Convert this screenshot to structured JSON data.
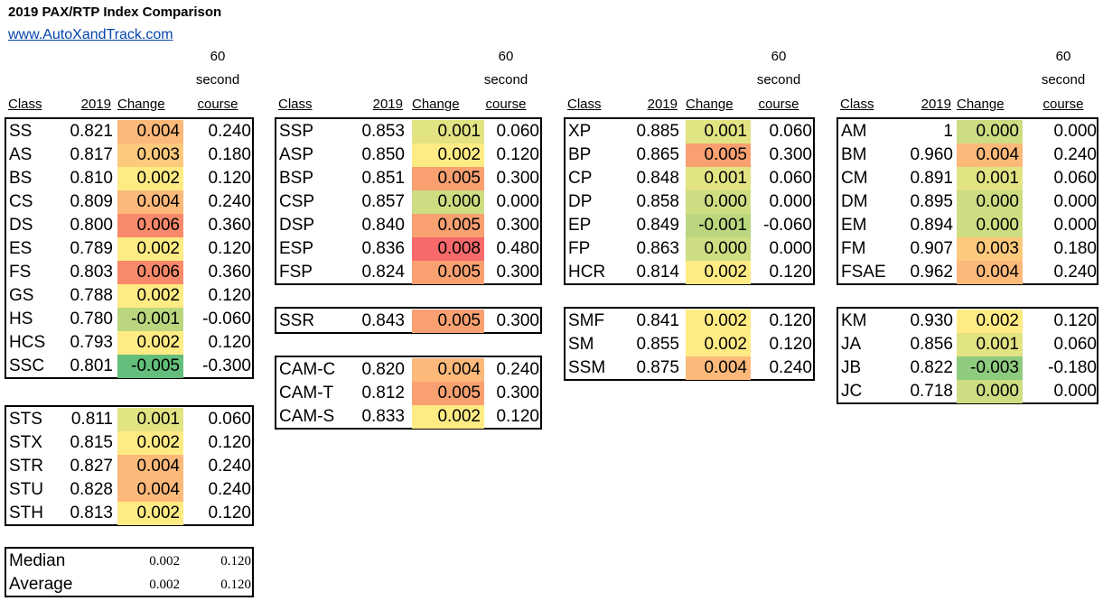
{
  "title": "2019 PAX/RTP Index Comparison",
  "link": "www.AutoXandTrack.com",
  "headers": {
    "class": "Class",
    "year": "2019",
    "change": "Change",
    "course_l1": "60",
    "course_l2": "second",
    "course_l3": "course"
  },
  "heat_colors": {
    "-0.005": "#63be7b",
    "-0.003": "#8ecb7e",
    "-0.001": "#bad77f",
    "0.000": "#cddd82",
    "0.001": "#e2e383",
    "0.002": "#ffeb84",
    "0.003": "#fdc97d",
    "0.004": "#fcb97a",
    "0.005": "#f9a071",
    "0.006": "#f8896b",
    "0.008": "#f8696b"
  },
  "col1": {
    "street": [
      {
        "cls": "SS",
        "val": "0.821",
        "chg": "0.004",
        "crs": "0.240"
      },
      {
        "cls": "AS",
        "val": "0.817",
        "chg": "0.003",
        "crs": "0.180"
      },
      {
        "cls": "BS",
        "val": "0.810",
        "chg": "0.002",
        "crs": "0.120"
      },
      {
        "cls": "CS",
        "val": "0.809",
        "chg": "0.004",
        "crs": "0.240"
      },
      {
        "cls": "DS",
        "val": "0.800",
        "chg": "0.006",
        "crs": "0.360"
      },
      {
        "cls": "ES",
        "val": "0.789",
        "chg": "0.002",
        "crs": "0.120"
      },
      {
        "cls": "FS",
        "val": "0.803",
        "chg": "0.006",
        "crs": "0.360"
      },
      {
        "cls": "GS",
        "val": "0.788",
        "chg": "0.002",
        "crs": "0.120"
      },
      {
        "cls": "HS",
        "val": "0.780",
        "chg": "-0.001",
        "crs": "-0.060"
      },
      {
        "cls": "HCS",
        "val": "0.793",
        "chg": "0.002",
        "crs": "0.120"
      },
      {
        "cls": "SSC",
        "val": "0.801",
        "chg": "-0.005",
        "crs": "-0.300"
      }
    ],
    "touring": [
      {
        "cls": "STS",
        "val": "0.811",
        "chg": "0.001",
        "crs": "0.060"
      },
      {
        "cls": "STX",
        "val": "0.815",
        "chg": "0.002",
        "crs": "0.120"
      },
      {
        "cls": "STR",
        "val": "0.827",
        "chg": "0.004",
        "crs": "0.240"
      },
      {
        "cls": "STU",
        "val": "0.828",
        "chg": "0.004",
        "crs": "0.240"
      },
      {
        "cls": "STH",
        "val": "0.813",
        "chg": "0.002",
        "crs": "0.120"
      }
    ],
    "summary": [
      {
        "label": "Median",
        "chg": "0.002",
        "crs": "0.120"
      },
      {
        "label": "Average",
        "chg": "0.002",
        "crs": "0.120"
      }
    ]
  },
  "col2": {
    "prepared": [
      {
        "cls": "SSP",
        "val": "0.853",
        "chg": "0.001",
        "crs": "0.060"
      },
      {
        "cls": "ASP",
        "val": "0.850",
        "chg": "0.002",
        "crs": "0.120"
      },
      {
        "cls": "BSP",
        "val": "0.851",
        "chg": "0.005",
        "crs": "0.300"
      },
      {
        "cls": "CSP",
        "val": "0.857",
        "chg": "0.000",
        "crs": "0.000"
      },
      {
        "cls": "DSP",
        "val": "0.840",
        "chg": "0.005",
        "crs": "0.300"
      },
      {
        "cls": "ESP",
        "val": "0.836",
        "chg": "0.008",
        "crs": "0.480"
      },
      {
        "cls": "FSP",
        "val": "0.824",
        "chg": "0.005",
        "crs": "0.300"
      }
    ],
    "ssr": [
      {
        "cls": "SSR",
        "val": "0.843",
        "chg": "0.005",
        "crs": "0.300"
      }
    ],
    "cam": [
      {
        "cls": "CAM-C",
        "val": "0.820",
        "chg": "0.004",
        "crs": "0.240"
      },
      {
        "cls": "CAM-T",
        "val": "0.812",
        "chg": "0.005",
        "crs": "0.300"
      },
      {
        "cls": "CAM-S",
        "val": "0.833",
        "chg": "0.002",
        "crs": "0.120"
      }
    ]
  },
  "col3": {
    "prepared": [
      {
        "cls": "XP",
        "val": "0.885",
        "chg": "0.001",
        "crs": "0.060"
      },
      {
        "cls": "BP",
        "val": "0.865",
        "chg": "0.005",
        "crs": "0.300"
      },
      {
        "cls": "CP",
        "val": "0.848",
        "chg": "0.001",
        "crs": "0.060"
      },
      {
        "cls": "DP",
        "val": "0.858",
        "chg": "0.000",
        "crs": "0.000"
      },
      {
        "cls": "EP",
        "val": "0.849",
        "chg": "-0.001",
        "crs": "-0.060"
      },
      {
        "cls": "FP",
        "val": "0.863",
        "chg": "0.000",
        "crs": "0.000"
      },
      {
        "cls": "HCR",
        "val": "0.814",
        "chg": "0.002",
        "crs": "0.120"
      }
    ],
    "smod": [
      {
        "cls": "SMF",
        "val": "0.841",
        "chg": "0.002",
        "crs": "0.120"
      },
      {
        "cls": "SM",
        "val": "0.855",
        "chg": "0.002",
        "crs": "0.120"
      },
      {
        "cls": "SSM",
        "val": "0.875",
        "chg": "0.004",
        "crs": "0.240"
      }
    ]
  },
  "col4": {
    "modified": [
      {
        "cls": "AM",
        "val": "1",
        "chg": "0.000",
        "crs": "0.000"
      },
      {
        "cls": "BM",
        "val": "0.960",
        "chg": "0.004",
        "crs": "0.240"
      },
      {
        "cls": "CM",
        "val": "0.891",
        "chg": "0.001",
        "crs": "0.060"
      },
      {
        "cls": "DM",
        "val": "0.895",
        "chg": "0.000",
        "crs": "0.000"
      },
      {
        "cls": "EM",
        "val": "0.894",
        "chg": "0.000",
        "crs": "0.000"
      },
      {
        "cls": "FM",
        "val": "0.907",
        "chg": "0.003",
        "crs": "0.180"
      },
      {
        "cls": "FSAE",
        "val": "0.962",
        "chg": "0.004",
        "crs": "0.240"
      }
    ],
    "kart": [
      {
        "cls": "KM",
        "val": "0.930",
        "chg": "0.002",
        "crs": "0.120"
      },
      {
        "cls": "JA",
        "val": "0.856",
        "chg": "0.001",
        "crs": "0.060"
      },
      {
        "cls": "JB",
        "val": "0.822",
        "chg": "-0.003",
        "crs": "-0.180"
      },
      {
        "cls": "JC",
        "val": "0.718",
        "chg": "0.000",
        "crs": "0.000"
      }
    ]
  }
}
